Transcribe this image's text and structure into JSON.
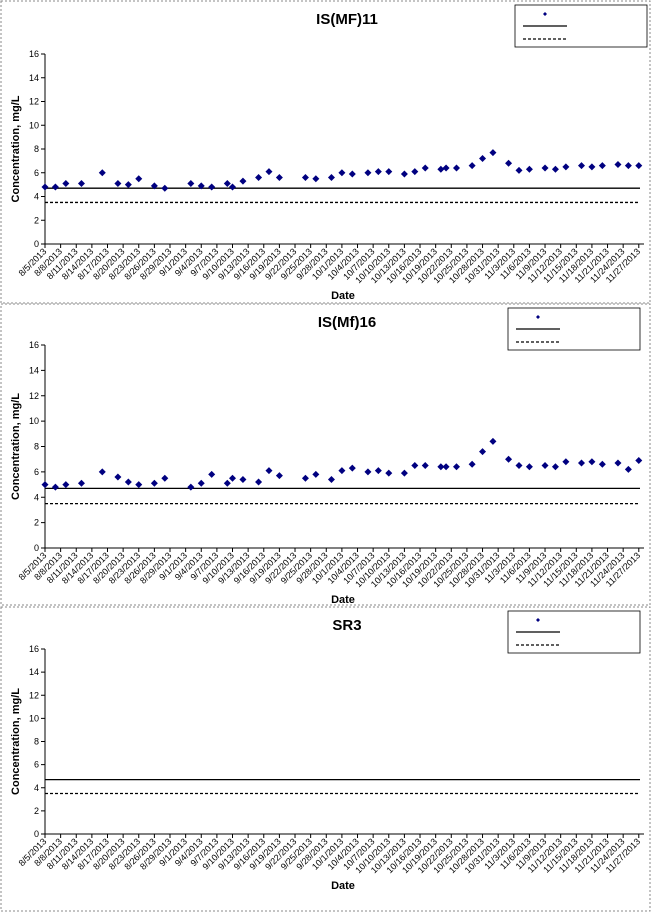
{
  "chart_data": [
    {
      "type": "scatter",
      "title": "IS(MF)11",
      "x_label": "Date",
      "y_label": "Concentration, mg/L",
      "xlim": [
        "8/5/2013",
        "11/28/2013"
      ],
      "xticks": [
        "8/5/2013",
        "8/8/2013",
        "8/11/2013",
        "8/14/2013",
        "8/17/2013",
        "8/20/2013",
        "8/23/2013",
        "8/26/2013",
        "8/29/2013",
        "9/1/2013",
        "9/4/2013",
        "9/7/2013",
        "9/10/2013",
        "9/13/2013",
        "9/16/2013",
        "9/19/2013",
        "9/22/2013",
        "9/25/2013",
        "9/28/2013",
        "10/1/2013",
        "10/4/2013",
        "10/7/2013",
        "10/10/2013",
        "10/13/2013",
        "10/16/2013",
        "10/19/2013",
        "10/22/2013",
        "10/25/2013",
        "10/28/2013",
        "10/31/2013",
        "11/3/2013",
        "11/6/2013",
        "11/9/2013",
        "11/12/2013",
        "11/15/2013",
        "11/18/2013",
        "11/21/2013",
        "11/24/2013",
        "11/27/2013"
      ],
      "ylim": [
        0,
        16
      ],
      "yticks": [
        0,
        2,
        4,
        6,
        8,
        10,
        12,
        14,
        16
      ],
      "series": [
        {
          "color": "#000080",
          "x": [
            "8/5/2013",
            "8/7/2013",
            "8/9/2013",
            "8/12/2013",
            "8/16/2013",
            "8/19/2013",
            "8/21/2013",
            "8/23/2013",
            "8/26/2013",
            "8/28/2013",
            "9/2/2013",
            "9/4/2013",
            "9/6/2013",
            "9/9/2013",
            "9/10/2013",
            "9/12/2013",
            "9/15/2013",
            "9/17/2013",
            "9/19/2013",
            "9/24/2013",
            "9/26/2013",
            "9/29/2013",
            "10/1/2013",
            "10/3/2013",
            "10/6/2013",
            "10/8/2013",
            "10/10/2013",
            "10/13/2013",
            "10/15/2013",
            "10/17/2013",
            "10/20/2013",
            "10/21/2013",
            "10/23/2013",
            "10/26/2013",
            "10/28/2013",
            "10/30/2013",
            "11/2/2013",
            "11/4/2013",
            "11/6/2013",
            "11/9/2013",
            "11/11/2013",
            "11/13/2013",
            "11/16/2013",
            "11/18/2013",
            "11/20/2013",
            "11/23/2013",
            "11/25/2013",
            "11/27/2013"
          ],
          "values": [
            4.8,
            4.8,
            5.1,
            5.1,
            6.0,
            5.1,
            5.0,
            5.5,
            4.9,
            4.7,
            5.1,
            4.9,
            4.8,
            5.1,
            4.8,
            5.3,
            5.6,
            6.1,
            5.6,
            5.6,
            5.5,
            5.6,
            6.0,
            5.9,
            6.0,
            6.1,
            6.1,
            5.9,
            6.1,
            6.4,
            6.3,
            6.4,
            6.4,
            6.6,
            7.2,
            7.7,
            6.8,
            6.2,
            6.3,
            6.4,
            6.3,
            6.5,
            6.6,
            6.5,
            6.6,
            6.7,
            6.6,
            6.6
          ]
        }
      ],
      "reference_lines": [
        {
          "value": 4.7,
          "style": "solid"
        },
        {
          "value": 3.5,
          "style": "dashed"
        }
      ]
    },
    {
      "type": "scatter",
      "title": "IS(Mf)16",
      "x_label": "Date",
      "y_label": "Concentration, mg/L",
      "xlim": [
        "8/5/2013",
        "11/28/2013"
      ],
      "xticks": [
        "8/5/2013",
        "8/8/2013",
        "8/11/2013",
        "8/14/2013",
        "8/17/2013",
        "8/20/2013",
        "8/23/2013",
        "8/26/2013",
        "8/29/2013",
        "9/1/2013",
        "9/4/2013",
        "9/7/2013",
        "9/10/2013",
        "9/13/2013",
        "9/16/2013",
        "9/19/2013",
        "9/22/2013",
        "9/25/2013",
        "9/28/2013",
        "10/1/2013",
        "10/4/2013",
        "10/7/2013",
        "10/10/2013",
        "10/13/2013",
        "10/16/2013",
        "10/19/2013",
        "10/22/2013",
        "10/25/2013",
        "10/28/2013",
        "10/31/2013",
        "11/3/2013",
        "11/6/2013",
        "11/9/2013",
        "11/12/2013",
        "11/15/2013",
        "11/18/2013",
        "11/21/2013",
        "11/24/2013",
        "11/27/2013"
      ],
      "ylim": [
        0,
        16
      ],
      "yticks": [
        0,
        2,
        4,
        6,
        8,
        10,
        12,
        14,
        16
      ],
      "series": [
        {
          "color": "#000080",
          "x": [
            "8/5/2013",
            "8/7/2013",
            "8/9/2013",
            "8/12/2013",
            "8/16/2013",
            "8/19/2013",
            "8/21/2013",
            "8/23/2013",
            "8/26/2013",
            "8/28/2013",
            "9/2/2013",
            "9/4/2013",
            "9/6/2013",
            "9/9/2013",
            "9/10/2013",
            "9/12/2013",
            "9/15/2013",
            "9/17/2013",
            "9/19/2013",
            "9/24/2013",
            "9/26/2013",
            "9/29/2013",
            "10/1/2013",
            "10/3/2013",
            "10/6/2013",
            "10/8/2013",
            "10/10/2013",
            "10/13/2013",
            "10/15/2013",
            "10/17/2013",
            "10/20/2013",
            "10/21/2013",
            "10/23/2013",
            "10/26/2013",
            "10/28/2013",
            "10/30/2013",
            "11/2/2013",
            "11/4/2013",
            "11/6/2013",
            "11/9/2013",
            "11/11/2013",
            "11/13/2013",
            "11/16/2013",
            "11/18/2013",
            "11/20/2013",
            "11/23/2013",
            "11/25/2013",
            "11/27/2013"
          ],
          "values": [
            5.0,
            4.8,
            5.0,
            5.1,
            6.0,
            5.6,
            5.2,
            5.0,
            5.1,
            5.5,
            4.8,
            5.1,
            5.8,
            5.1,
            5.5,
            5.4,
            5.2,
            6.1,
            5.7,
            5.5,
            5.8,
            5.4,
            6.1,
            6.3,
            6.0,
            6.1,
            5.9,
            5.9,
            6.5,
            6.5,
            6.4,
            6.4,
            6.4,
            6.6,
            7.6,
            8.4,
            7.0,
            6.5,
            6.4,
            6.5,
            6.4,
            6.8,
            6.7,
            6.8,
            6.6,
            6.7,
            6.2,
            6.9
          ]
        }
      ],
      "reference_lines": [
        {
          "value": 4.7,
          "style": "solid"
        },
        {
          "value": 3.5,
          "style": "dashed"
        }
      ]
    },
    {
      "type": "scatter",
      "title": "SR3",
      "x_label": "Date",
      "y_label": "Concentration, mg/L",
      "xlim": [
        "8/5/2013",
        "11/28/2013"
      ],
      "xticks": [
        "8/5/2013",
        "8/8/2013",
        "8/11/2013",
        "8/14/2013",
        "8/17/2013",
        "8/20/2013",
        "8/23/2013",
        "8/26/2013",
        "8/29/2013",
        "9/1/2013",
        "9/4/2013",
        "9/7/2013",
        "9/10/2013",
        "9/13/2013",
        "9/16/2013",
        "9/19/2013",
        "9/22/2013",
        "9/25/2013",
        "9/28/2013",
        "10/1/2013",
        "10/4/2013",
        "10/7/2013",
        "10/10/2013",
        "10/13/2013",
        "10/16/2013",
        "10/19/2013",
        "10/22/2013",
        "10/25/2013",
        "10/28/2013",
        "10/31/2013",
        "11/3/2013",
        "11/6/2013",
        "11/9/2013",
        "11/12/2013",
        "11/15/2013",
        "11/18/2013",
        "11/21/2013",
        "11/24/2013",
        "11/27/2013"
      ],
      "ylim": [
        0,
        16
      ],
      "yticks": [
        0,
        2,
        4,
        6,
        8,
        10,
        12,
        14,
        16
      ],
      "series": [
        {
          "color": "#000080",
          "x": [],
          "values": []
        }
      ],
      "reference_lines": [
        {
          "value": 4.7,
          "style": "solid"
        },
        {
          "value": 3.5,
          "style": "dashed"
        }
      ]
    }
  ]
}
